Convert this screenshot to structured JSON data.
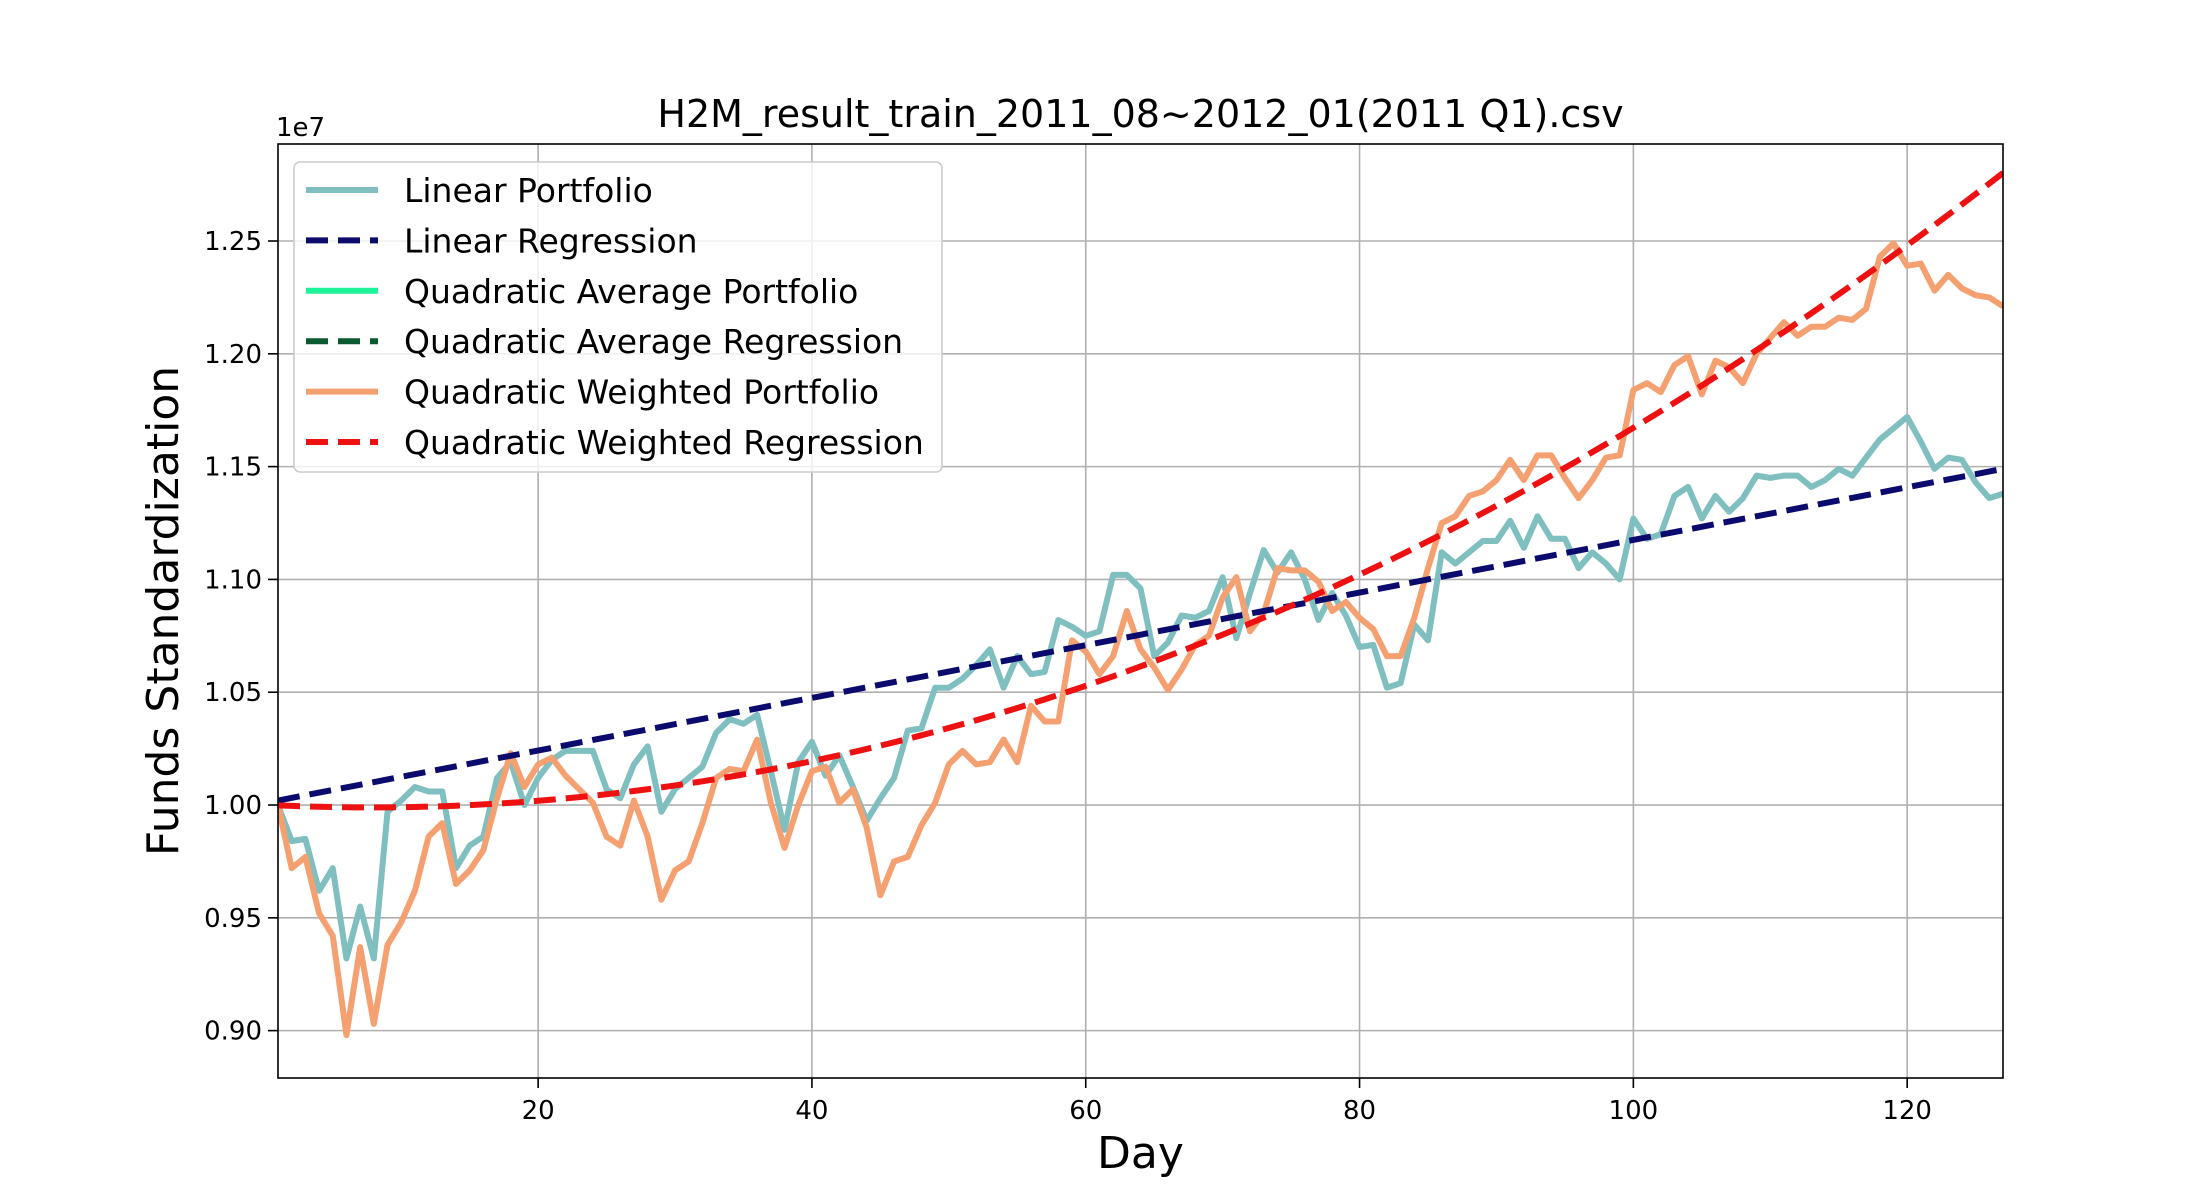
{
  "chart_data": {
    "type": "line",
    "title": "H2M_result_train_2011_08~2012_01(2011 Q1).csv",
    "xlabel": "Day",
    "ylabel": "Funds Standardization",
    "y_offset_label": "1e7",
    "xlim": [
      1,
      127
    ],
    "ylim": [
      0.879,
      1.293
    ],
    "x_ticks": [
      20,
      40,
      60,
      80,
      100,
      120
    ],
    "x_tick_labels": [
      "20",
      "40",
      "60",
      "80",
      "100",
      "120"
    ],
    "y_ticks": [
      0.9,
      0.95,
      1.0,
      1.05,
      1.1,
      1.15,
      1.2,
      1.25
    ],
    "y_tick_labels": [
      "0.90",
      "0.95",
      "1.00",
      "1.05",
      "1.10",
      "1.15",
      "1.20",
      "1.25"
    ],
    "grid": true,
    "legend_position": "top-left",
    "x_start": 1,
    "series": [
      {
        "name": "Linear Portfolio",
        "color": "#80bfc0",
        "style": "solid",
        "values": [
          1.0,
          0.984,
          0.985,
          0.962,
          0.972,
          0.932,
          0.955,
          0.932,
          0.997,
          1.002,
          1.008,
          1.006,
          1.006,
          0.972,
          0.982,
          0.986,
          1.012,
          1.019,
          1.0,
          1.012,
          1.02,
          1.024,
          1.024,
          1.024,
          1.007,
          1.003,
          1.018,
          1.026,
          0.997,
          1.007,
          1.012,
          1.017,
          1.032,
          1.038,
          1.036,
          1.04,
          1.015,
          0.989,
          1.019,
          1.028,
          1.013,
          1.022,
          1.008,
          0.993,
          1.003,
          1.012,
          1.033,
          1.034,
          1.052,
          1.052,
          1.056,
          1.062,
          1.069,
          1.052,
          1.066,
          1.058,
          1.059,
          1.082,
          1.079,
          1.075,
          1.077,
          1.102,
          1.102,
          1.096,
          1.066,
          1.072,
          1.084,
          1.083,
          1.086,
          1.101,
          1.074,
          1.094,
          1.113,
          1.103,
          1.112,
          1.1,
          1.082,
          1.094,
          1.084,
          1.07,
          1.071,
          1.052,
          1.054,
          1.08,
          1.073,
          1.112,
          1.107,
          1.112,
          1.117,
          1.117,
          1.126,
          1.114,
          1.128,
          1.118,
          1.118,
          1.105,
          1.112,
          1.107,
          1.1,
          1.127,
          1.118,
          1.12,
          1.137,
          1.141,
          1.127,
          1.137,
          1.13,
          1.136,
          1.146,
          1.145,
          1.146,
          1.146,
          1.141,
          1.144,
          1.149,
          1.146,
          1.154,
          1.162,
          1.167,
          1.172,
          1.161,
          1.149,
          1.154,
          1.153,
          1.143,
          1.136,
          1.138
        ]
      },
      {
        "name": "Linear Regression",
        "color": "#0b0b6e",
        "style": "dashed",
        "fit": "linear",
        "fit_endpoints": [
          1.002,
          1.149
        ]
      },
      {
        "name": "Quadratic Average Portfolio",
        "color": "#1ef39a",
        "style": "solid",
        "values": []
      },
      {
        "name": "Quadratic Average Regression",
        "color": "#0a5a30",
        "style": "dashed",
        "values": []
      },
      {
        "name": "Quadratic Weighted Portfolio",
        "color": "#f5a070",
        "style": "solid",
        "values": [
          1.0,
          0.972,
          0.977,
          0.952,
          0.942,
          0.898,
          0.937,
          0.903,
          0.938,
          0.948,
          0.962,
          0.986,
          0.992,
          0.965,
          0.971,
          0.98,
          1.003,
          1.023,
          1.008,
          1.018,
          1.021,
          1.013,
          1.007,
          1.001,
          0.986,
          0.982,
          1.002,
          0.986,
          0.958,
          0.971,
          0.975,
          0.992,
          1.012,
          1.016,
          1.015,
          1.029,
          1.001,
          0.981,
          1.0,
          1.015,
          1.017,
          1.001,
          1.007,
          0.99,
          0.96,
          0.975,
          0.977,
          0.991,
          1.001,
          1.018,
          1.024,
          1.018,
          1.019,
          1.029,
          1.019,
          1.044,
          1.037,
          1.037,
          1.073,
          1.068,
          1.058,
          1.066,
          1.086,
          1.069,
          1.061,
          1.051,
          1.06,
          1.071,
          1.075,
          1.092,
          1.101,
          1.077,
          1.085,
          1.105,
          1.104,
          1.104,
          1.099,
          1.086,
          1.09,
          1.083,
          1.078,
          1.066,
          1.066,
          1.083,
          1.105,
          1.125,
          1.128,
          1.137,
          1.139,
          1.144,
          1.153,
          1.144,
          1.155,
          1.155,
          1.145,
          1.136,
          1.144,
          1.154,
          1.155,
          1.184,
          1.187,
          1.183,
          1.195,
          1.199,
          1.182,
          1.197,
          1.194,
          1.187,
          1.2,
          1.207,
          1.214,
          1.208,
          1.212,
          1.212,
          1.216,
          1.215,
          1.22,
          1.243,
          1.249,
          1.239,
          1.24,
          1.228,
          1.235,
          1.229,
          1.226,
          1.225,
          1.221
        ]
      },
      {
        "name": "Quadratic Weighted Regression",
        "color": "#ee1111",
        "style": "dashed",
        "fit": "quadratic",
        "coefficients": [
          0.99986,
          -0.00027,
          1.98e-05
        ]
      }
    ]
  }
}
